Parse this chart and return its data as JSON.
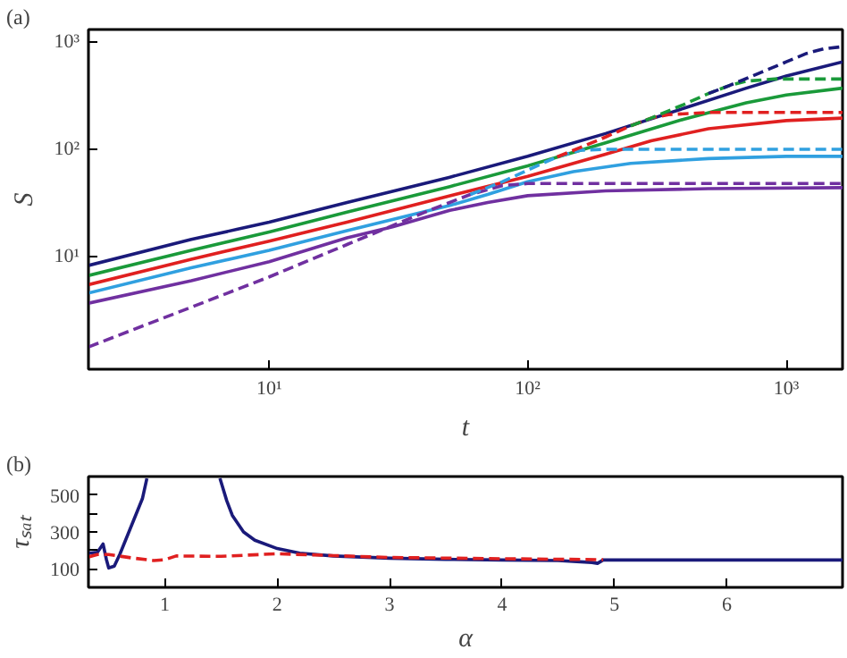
{
  "chart_data": [
    {
      "type": "line",
      "xlabel": "t",
      "ylabel": "S",
      "log": "xy",
      "annotations": [
        "(a)"
      ],
      "xlim": [
        2,
        1650
      ],
      "ylim": [
        0.9,
        1300
      ],
      "xticks": [
        {
          "value": 10,
          "label": "10¹"
        },
        {
          "value": 100,
          "label": "10²"
        },
        {
          "value": 1000,
          "label": "10³"
        }
      ],
      "yticks": [
        {
          "value": 10,
          "label": "10¹"
        },
        {
          "value": 100,
          "label": "10²"
        },
        {
          "value": 1000,
          "label": "10³"
        }
      ],
      "grid": false,
      "series": [
        {
          "color": "#1a1a7a",
          "line_style": "solid",
          "x": [
            2,
            5,
            10,
            20,
            50,
            100,
            200,
            400,
            700,
            1000,
            1650
          ],
          "values": [
            8.3,
            14.5,
            21,
            32,
            55,
            86,
            140,
            240,
            370,
            480,
            650
          ]
        },
        {
          "color": "#1a9a3a",
          "line_style": "solid",
          "x": [
            2,
            5,
            10,
            20,
            50,
            100,
            200,
            400,
            700,
            1000,
            1650
          ],
          "values": [
            6.7,
            11.5,
            17,
            26,
            45,
            70,
            115,
            190,
            270,
            320,
            370
          ]
        },
        {
          "color": "#e02020",
          "line_style": "solid",
          "x": [
            2,
            5,
            10,
            20,
            50,
            100,
            200,
            300,
            500,
            1000,
            1650
          ],
          "values": [
            5.5,
            9.5,
            14,
            21,
            37,
            56,
            90,
            120,
            155,
            185,
            195
          ]
        },
        {
          "color": "#30a0e0",
          "line_style": "solid",
          "x": [
            2,
            5,
            10,
            20,
            50,
            70,
            100,
            150,
            250,
            500,
            1000,
            1650
          ],
          "values": [
            4.6,
            7.9,
            11.5,
            17.5,
            30,
            38,
            50,
            62,
            74,
            82,
            86,
            86
          ]
        },
        {
          "color": "#7030a0",
          "line_style": "solid",
          "x": [
            2,
            5,
            10,
            20,
            30,
            50,
            70,
            100,
            200,
            500,
            1650
          ],
          "values": [
            3.7,
            6,
            9,
            15,
            19,
            27,
            32,
            37,
            41,
            43,
            44
          ]
        },
        {
          "color": "#7030a0",
          "line_style": "dashed",
          "x": [
            2,
            5,
            10,
            20,
            40,
            60,
            80,
            100,
            200,
            1650
          ],
          "values": [
            1.45,
            3.4,
            6.5,
            13,
            26,
            38,
            46,
            48,
            48,
            48
          ]
        },
        {
          "color": "#30a0e0",
          "line_style": "dashed",
          "x": [
            60,
            80,
            100,
            130,
            160,
            200,
            1650
          ],
          "values": [
            38,
            50,
            64,
            85,
            98,
            100,
            100
          ]
        },
        {
          "color": "#e02020",
          "line_style": "dashed",
          "x": [
            130,
            160,
            200,
            250,
            300,
            350,
            500,
            1650
          ],
          "values": [
            85,
            104,
            130,
            165,
            195,
            210,
            220,
            220
          ]
        },
        {
          "color": "#1a9a3a",
          "line_style": "dashed",
          "x": [
            250,
            300,
            400,
            500,
            600,
            700,
            900,
            1650
          ],
          "values": [
            165,
            195,
            260,
            330,
            390,
            430,
            450,
            450
          ]
        },
        {
          "color": "#1a1a7a",
          "line_style": "dashed",
          "x": [
            500,
            600,
            800,
            1000,
            1200,
            1400,
            1650
          ],
          "values": [
            330,
            390,
            520,
            650,
            780,
            860,
            900
          ]
        }
      ]
    },
    {
      "type": "line",
      "xlabel": "α",
      "ylabel": "τₛₐₜ",
      "annotations": [
        "(b)"
      ],
      "xlim": [
        0.32,
        7.03
      ],
      "ylim": [
        0,
        600
      ],
      "xticks": [
        1,
        2,
        3,
        4,
        5,
        6
      ],
      "yticks": [
        100,
        {
          "value": 200,
          "label": null
        },
        300,
        {
          "value": 400,
          "label": null
        },
        500
      ],
      "grid": false,
      "series": [
        {
          "color": "#1a1a7a",
          "line_style": "solid",
          "x": [
            0.32,
            0.4,
            0.45,
            0.48,
            0.5,
            0.55,
            0.6,
            0.7,
            0.8,
            0.84,
            1.2,
            1.49,
            1.55,
            1.6,
            1.7,
            1.8,
            2.0,
            2.2,
            2.5,
            3,
            3.5,
            4,
            4.5,
            4.8,
            4.85,
            4.9,
            5,
            7.03
          ],
          "values": [
            185,
            190,
            235,
            150,
            105,
            115,
            180,
            330,
            480,
            590,
            null,
            590,
            470,
            390,
            300,
            255,
            210,
            185,
            170,
            158,
            152,
            148,
            145,
            135,
            130,
            148,
            148,
            148
          ]
        },
        {
          "color": "#e02020",
          "line_style": "dashed",
          "x": [
            0.32,
            0.4,
            0.5,
            0.7,
            0.9,
            1.0,
            1.1,
            1.5,
            2.0,
            2.5,
            3,
            4,
            4.9
          ],
          "values": [
            165,
            178,
            178,
            160,
            145,
            150,
            170,
            168,
            182,
            172,
            162,
            155,
            150
          ]
        }
      ]
    }
  ]
}
